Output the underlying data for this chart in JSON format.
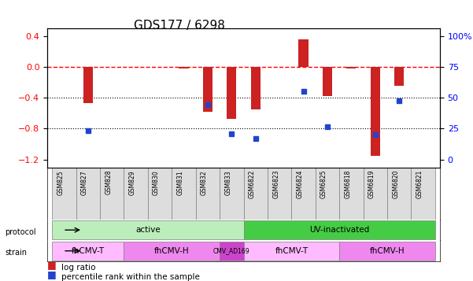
{
  "title": "GDS177 / 6298",
  "samples": [
    "GSM825",
    "GSM827",
    "GSM828",
    "GSM829",
    "GSM830",
    "GSM831",
    "GSM832",
    "GSM833",
    "GSM6822",
    "GSM6823",
    "GSM6824",
    "GSM6825",
    "GSM6818",
    "GSM6819",
    "GSM6820",
    "GSM6821"
  ],
  "log_ratio": [
    0.0,
    -0.47,
    0.0,
    0.0,
    0.0,
    -0.02,
    -0.58,
    -0.67,
    -0.55,
    0.0,
    0.35,
    -0.38,
    -0.02,
    -1.15,
    -0.25,
    0.0
  ],
  "percentile": [
    null,
    -0.83,
    null,
    null,
    null,
    null,
    -0.49,
    -0.87,
    -0.93,
    null,
    -0.32,
    -0.77,
    null,
    -0.88,
    -0.44,
    null
  ],
  "protocol_groups": [
    {
      "label": "active",
      "start": 0,
      "end": 7,
      "color": "#aaffaa"
    },
    {
      "label": "UV-inactivated",
      "start": 8,
      "end": 15,
      "color": "#44cc44"
    }
  ],
  "strain_groups": [
    {
      "label": "fhCMV-T",
      "start": 0,
      "end": 2,
      "color": "#ffaaff"
    },
    {
      "label": "fhCMV-H",
      "start": 3,
      "end": 6,
      "color": "#dd88dd"
    },
    {
      "label": "CMV_AD169",
      "start": 7,
      "end": 7,
      "color": "#cc44cc"
    },
    {
      "label": "fhCMV-T",
      "start": 8,
      "end": 11,
      "color": "#ffaaff"
    },
    {
      "label": "fhCMV-H",
      "start": 12,
      "end": 15,
      "color": "#dd88dd"
    }
  ],
  "bar_color": "#cc2222",
  "dot_color": "#2244cc",
  "ylim_left": [
    -1.3,
    0.5
  ],
  "ylim_right": [
    0,
    100
  ],
  "yticks_left": [
    -1.2,
    -0.8,
    -0.4,
    0.0,
    0.4
  ],
  "yticks_right": [
    0,
    25,
    50,
    75,
    100
  ],
  "hlines": [
    -0.4,
    -0.8
  ],
  "zero_line": 0.0
}
